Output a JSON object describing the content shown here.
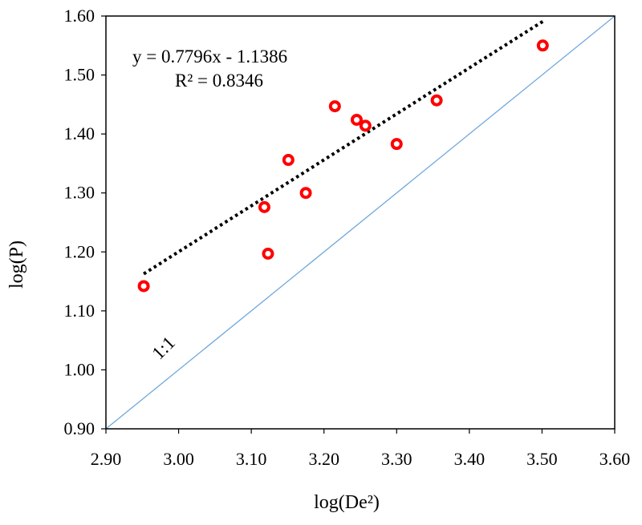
{
  "chart_data": {
    "type": "scatter",
    "title": "",
    "xlabel": "log(De²)",
    "ylabel": "log(P)",
    "xlim": [
      2.9,
      3.6
    ],
    "ylim": [
      0.9,
      1.6
    ],
    "x_ticks": [
      "2.90",
      "3.00",
      "3.10",
      "3.20",
      "3.30",
      "3.40",
      "3.50",
      "3.60"
    ],
    "y_ticks": [
      "0.90",
      "1.00",
      "1.10",
      "1.20",
      "1.30",
      "1.40",
      "1.50",
      "1.60"
    ],
    "x_tick_values": [
      2.9,
      3.0,
      3.1,
      3.2,
      3.3,
      3.4,
      3.5,
      3.6
    ],
    "y_tick_values": [
      0.9,
      1.0,
      1.1,
      1.2,
      1.3,
      1.4,
      1.5,
      1.6
    ],
    "grid": false,
    "legend": "none",
    "points": [
      {
        "x": 2.952,
        "y": 1.142
      },
      {
        "x": 3.118,
        "y": 1.276
      },
      {
        "x": 3.123,
        "y": 1.197
      },
      {
        "x": 3.151,
        "y": 1.356
      },
      {
        "x": 3.175,
        "y": 1.3
      },
      {
        "x": 3.215,
        "y": 1.447
      },
      {
        "x": 3.245,
        "y": 1.424
      },
      {
        "x": 3.257,
        "y": 1.414
      },
      {
        "x": 3.3,
        "y": 1.383
      },
      {
        "x": 3.355,
        "y": 1.457
      },
      {
        "x": 3.501,
        "y": 1.55
      }
    ],
    "trendline": {
      "slope": 0.7796,
      "intercept": -1.1386,
      "x_start": 2.952,
      "x_end": 3.501,
      "equation_text": "y = 0.7796x - 1.1386",
      "r2_text": "R² = 0.8346"
    },
    "reference_line": {
      "label": "1:1",
      "from": [
        2.9,
        0.9
      ],
      "to": [
        3.6,
        1.6
      ]
    },
    "colors": {
      "points": "#ff0000",
      "trendline": "#000000",
      "reference_line": "#6fa8dc",
      "frame": "#000000"
    }
  }
}
